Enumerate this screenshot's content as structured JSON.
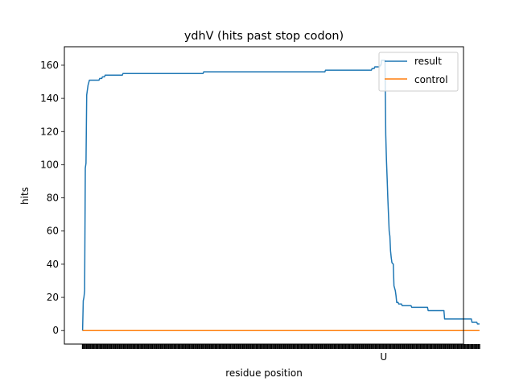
{
  "chart_data": {
    "type": "line",
    "title": "ydhV (hits past stop codon)",
    "xlabel": "residue position",
    "ylabel": "hits",
    "xlim": [
      -13.3,
      278.3
    ],
    "ylim": [
      -8.15,
      171.15
    ],
    "yticks": [
      0,
      20,
      40,
      60,
      80,
      100,
      120,
      140,
      160
    ],
    "x_tick_label": {
      "x": 220,
      "label": "U"
    },
    "legend": {
      "position": "top-right",
      "entries": [
        "result",
        "control"
      ]
    },
    "grid": false,
    "series": [
      {
        "name": "result",
        "color": "#1f77b4",
        "points": [
          [
            0,
            0
          ],
          [
            0.5,
            18
          ],
          [
            1,
            20
          ],
          [
            1.5,
            24
          ],
          [
            2,
            98
          ],
          [
            2.5,
            101
          ],
          [
            3,
            142
          ],
          [
            3.5,
            145
          ],
          [
            4,
            148
          ],
          [
            5,
            151
          ],
          [
            12,
            151
          ],
          [
            12.5,
            152
          ],
          [
            14,
            152
          ],
          [
            14.5,
            153
          ],
          [
            16,
            153
          ],
          [
            16.5,
            154
          ],
          [
            29,
            154
          ],
          [
            29.5,
            155
          ],
          [
            88,
            155
          ],
          [
            88.5,
            156
          ],
          [
            177,
            156
          ],
          [
            177.5,
            157
          ],
          [
            211,
            157
          ],
          [
            211.5,
            158
          ],
          [
            213,
            158
          ],
          [
            213.5,
            159
          ],
          [
            217,
            159
          ],
          [
            217.5,
            160
          ],
          [
            218,
            160
          ],
          [
            218.5,
            163
          ],
          [
            221,
            163
          ],
          [
            221,
            160
          ],
          [
            221.5,
            118
          ],
          [
            222,
            103
          ],
          [
            222.5,
            92
          ],
          [
            223,
            80
          ],
          [
            223.5,
            70
          ],
          [
            224,
            60
          ],
          [
            224.5,
            57
          ],
          [
            225,
            48
          ],
          [
            225.5,
            44
          ],
          [
            226,
            41
          ],
          [
            227,
            40
          ],
          [
            227.5,
            27
          ],
          [
            228.5,
            24
          ],
          [
            229,
            21
          ],
          [
            229.5,
            17
          ],
          [
            230.5,
            17
          ],
          [
            231,
            16
          ],
          [
            233,
            16
          ],
          [
            233.5,
            15
          ],
          [
            240,
            15
          ],
          [
            240.5,
            14
          ],
          [
            252,
            14
          ],
          [
            252.5,
            12
          ],
          [
            264,
            12
          ],
          [
            264.5,
            7
          ],
          [
            284,
            7
          ],
          [
            284.5,
            5
          ],
          [
            288,
            5
          ],
          [
            288.5,
            4
          ],
          [
            290,
            4
          ]
        ]
      },
      {
        "name": "control",
        "color": "#ff7f0e",
        "points": [
          [
            0,
            0
          ],
          [
            290,
            0
          ]
        ]
      }
    ]
  }
}
